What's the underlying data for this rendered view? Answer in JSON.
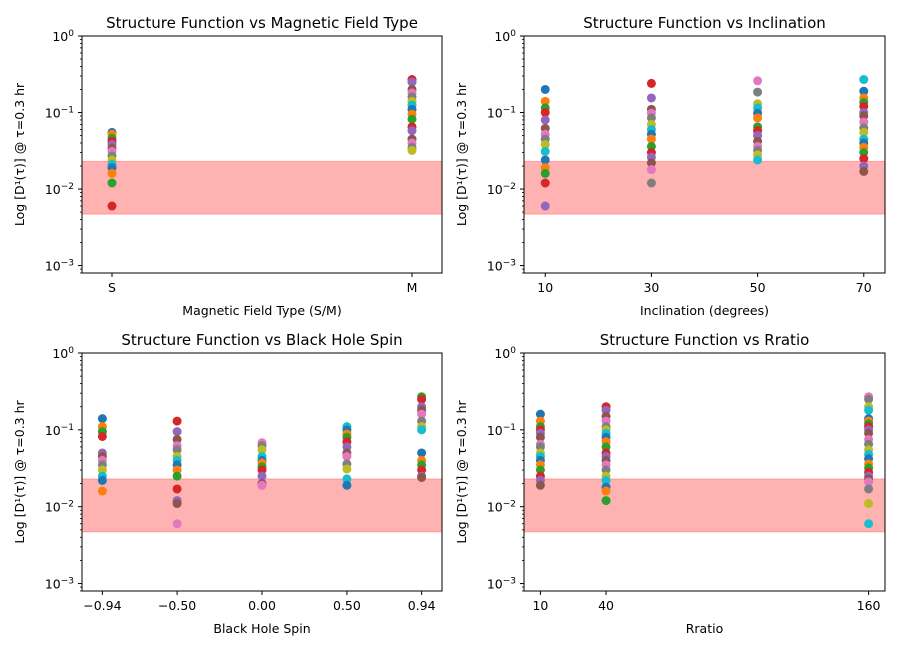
{
  "chart_data": [
    {
      "type": "scatter",
      "title": "Structure Function vs Magnetic Field Type",
      "xlabel": "Magnetic Field Type (S/M)",
      "ylabel": "Log [D¹(τ)] @ τ=0.3 hr",
      "yscale": "log",
      "ylim": [
        0.0008,
        1
      ],
      "xlim": [
        -0.1,
        1.1
      ],
      "xticks": [
        {
          "value": 0,
          "label": "S"
        },
        {
          "value": 1,
          "label": "M"
        }
      ],
      "band": [
        0.0047,
        0.023
      ],
      "groups": [
        {
          "x": 0,
          "values": [
            0.055,
            0.052,
            0.046,
            0.042,
            0.038,
            0.034,
            0.031,
            0.027,
            0.024,
            0.021,
            0.019,
            0.016,
            0.012,
            0.006
          ]
        },
        {
          "x": 1,
          "values": [
            0.27,
            0.25,
            0.2,
            0.18,
            0.16,
            0.14,
            0.125,
            0.11,
            0.095,
            0.082,
            0.065,
            0.058,
            0.045,
            0.04,
            0.035,
            0.032
          ]
        }
      ]
    },
    {
      "type": "scatter",
      "title": "Structure Function vs Inclination",
      "xlabel": "Inclination (degrees)",
      "ylabel": "Log [D¹(τ)] @ τ=0.3 hr",
      "yscale": "log",
      "ylim": [
        0.0008,
        1
      ],
      "xlim": [
        6,
        74
      ],
      "xticks": [
        {
          "value": 10,
          "label": "10"
        },
        {
          "value": 30,
          "label": "30"
        },
        {
          "value": 50,
          "label": "50"
        },
        {
          "value": 70,
          "label": "70"
        }
      ],
      "band": [
        0.0047,
        0.023
      ],
      "groups": [
        {
          "x": 10,
          "values": [
            0.2,
            0.14,
            0.115,
            0.1,
            0.08,
            0.062,
            0.052,
            0.045,
            0.038,
            0.031,
            0.024,
            0.019,
            0.016,
            0.012,
            0.006
          ]
        },
        {
          "x": 30,
          "values": [
            0.24,
            0.155,
            0.11,
            0.098,
            0.085,
            0.07,
            0.06,
            0.052,
            0.045,
            0.036,
            0.03,
            0.026,
            0.022,
            0.018,
            0.012
          ]
        },
        {
          "x": 50,
          "values": [
            0.26,
            0.185,
            0.13,
            0.115,
            0.098,
            0.085,
            0.065,
            0.058,
            0.05,
            0.042,
            0.036,
            0.032,
            0.028,
            0.024
          ]
        },
        {
          "x": 70,
          "values": [
            0.27,
            0.19,
            0.155,
            0.135,
            0.12,
            0.1,
            0.09,
            0.075,
            0.063,
            0.055,
            0.045,
            0.04,
            0.035,
            0.03,
            0.025,
            0.02,
            0.017
          ]
        }
      ]
    },
    {
      "type": "scatter",
      "title": "Structure Function vs Black Hole Spin",
      "xlabel": "Black Hole Spin",
      "ylabel": "Log [D¹(τ)] @ τ=0.3 hr",
      "yscale": "log",
      "ylim": [
        0.0008,
        1
      ],
      "xlim": [
        -1.06,
        1.06
      ],
      "xticks": [
        {
          "value": -0.94,
          "label": "−0.94"
        },
        {
          "value": -0.5,
          "label": "−0.50"
        },
        {
          "value": 0,
          "label": "0.00"
        },
        {
          "value": 0.5,
          "label": "0.50"
        },
        {
          "value": 0.94,
          "label": "0.94"
        }
      ],
      "band": [
        0.0047,
        0.023
      ],
      "groups": [
        {
          "x": -0.94,
          "values": [
            0.14,
            0.11,
            0.095,
            0.082,
            0.05,
            0.045,
            0.04,
            0.035,
            0.03,
            0.025,
            0.022,
            0.016
          ]
        },
        {
          "x": -0.5,
          "values": [
            0.13,
            0.095,
            0.075,
            0.062,
            0.055,
            0.045,
            0.04,
            0.035,
            0.03,
            0.025,
            0.017,
            0.012,
            0.011,
            0.006
          ]
        },
        {
          "x": 0,
          "values": [
            0.068,
            0.062,
            0.055,
            0.045,
            0.04,
            0.037,
            0.033,
            0.03,
            0.025,
            0.02,
            0.019
          ]
        },
        {
          "x": 0.5,
          "values": [
            0.11,
            0.1,
            0.088,
            0.08,
            0.07,
            0.06,
            0.05,
            0.045,
            0.036,
            0.031,
            0.023,
            0.019
          ]
        },
        {
          "x": 0.94,
          "values": [
            0.27,
            0.25,
            0.2,
            0.18,
            0.16,
            0.13,
            0.11,
            0.1,
            0.05,
            0.04,
            0.035,
            0.03,
            0.025,
            0.024
          ]
        }
      ]
    },
    {
      "type": "scatter",
      "title": "Structure Function vs Rratio",
      "xlabel": "Rratio",
      "ylabel": "Log [D¹(τ)] @ τ=0.3 hr",
      "yscale": "log",
      "ylim": [
        0.0008,
        1
      ],
      "xlim": [
        2.5,
        167.5
      ],
      "xticks": [
        {
          "value": 10,
          "label": "10"
        },
        {
          "value": 40,
          "label": "40"
        },
        {
          "value": 160,
          "label": "160"
        }
      ],
      "band": [
        0.0047,
        0.023
      ],
      "groups": [
        {
          "x": 10,
          "values": [
            0.16,
            0.13,
            0.11,
            0.1,
            0.09,
            0.08,
            0.065,
            0.06,
            0.05,
            0.045,
            0.04,
            0.035,
            0.03,
            0.025,
            0.022,
            0.019
          ]
        },
        {
          "x": 40,
          "values": [
            0.2,
            0.18,
            0.15,
            0.13,
            0.11,
            0.1,
            0.09,
            0.08,
            0.07,
            0.06,
            0.05,
            0.045,
            0.04,
            0.035,
            0.03,
            0.025,
            0.022,
            0.018,
            0.016,
            0.012
          ]
        },
        {
          "x": 160,
          "values": [
            0.27,
            0.25,
            0.2,
            0.18,
            0.14,
            0.13,
            0.12,
            0.11,
            0.1,
            0.09,
            0.075,
            0.065,
            0.055,
            0.048,
            0.042,
            0.036,
            0.032,
            0.028,
            0.025,
            0.023,
            0.021,
            0.017,
            0.011,
            0.006
          ]
        }
      ]
    }
  ],
  "colors": {
    "band_fill": "#ff0000",
    "series": [
      "#1f77b4",
      "#ff7f0e",
      "#2ca02c",
      "#d62728",
      "#9467bd",
      "#8c564b",
      "#e377c2",
      "#7f7f7f",
      "#bcbd22",
      "#17becf"
    ]
  }
}
